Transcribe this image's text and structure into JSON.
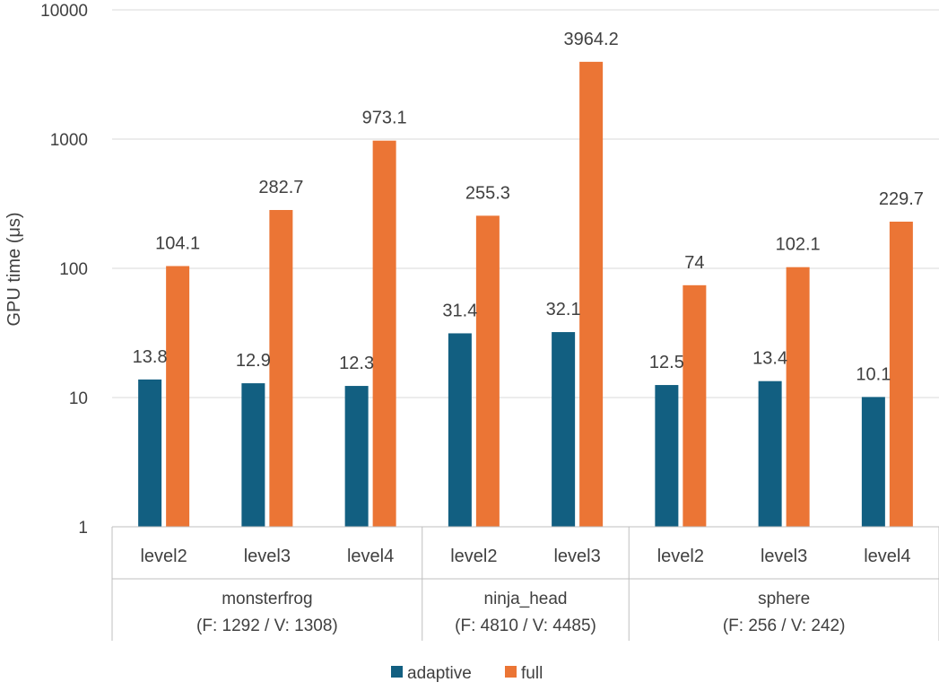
{
  "chart_data": {
    "type": "bar",
    "ylabel": "GPU time (μs)",
    "yscale": "log",
    "ylim": [
      1,
      10000
    ],
    "yticks": [
      "1",
      "10",
      "100",
      "1000",
      "10000"
    ],
    "grid": true,
    "legend_position": "bottom",
    "groups": [
      {
        "label": "monsterfrog",
        "sublabel": "(F: 1292 / V: 1308)",
        "categories": [
          "level2",
          "level3",
          "level4"
        ]
      },
      {
        "label": "ninja_head",
        "sublabel": "(F: 4810 / V: 4485)",
        "categories": [
          "level2",
          "level3"
        ]
      },
      {
        "label": "sphere",
        "sublabel": "(F: 256 / V: 242)",
        "categories": [
          "level2",
          "level3",
          "level4"
        ]
      }
    ],
    "series": [
      {
        "name": "adaptive",
        "color": "#125f81",
        "values": [
          13.8,
          12.9,
          12.3,
          31.4,
          32.1,
          12.5,
          13.4,
          10.1
        ],
        "labels": [
          "13.8",
          "12.9",
          "12.3",
          "31.4",
          "32.1",
          "12.5",
          "13.4",
          "10.1"
        ]
      },
      {
        "name": "full",
        "color": "#eb7535",
        "values": [
          104.1,
          282.7,
          973.1,
          255.3,
          3964.2,
          74,
          102.1,
          229.7
        ],
        "labels": [
          "104.1",
          "282.7",
          "973.1",
          "255.3",
          "3964.2",
          "74",
          "102.1",
          "229.7"
        ]
      }
    ]
  }
}
